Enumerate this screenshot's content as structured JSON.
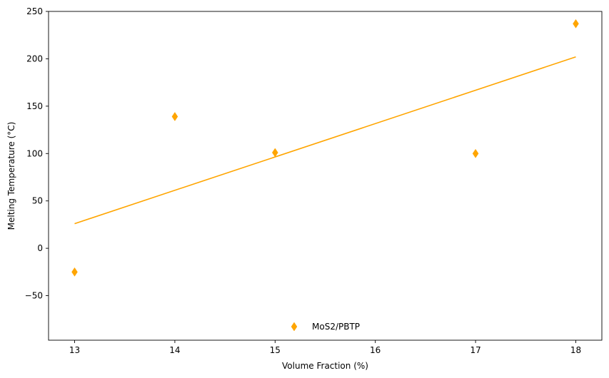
{
  "chart_data": {
    "type": "scatter",
    "title": "",
    "xlabel": "Volume Fraction (%)",
    "ylabel": "Melting Temperature (°C)",
    "xlim": [
      12.74,
      18.26
    ],
    "ylim": [
      -97,
      250
    ],
    "x_ticks": [
      13,
      14,
      15,
      16,
      17,
      18
    ],
    "x_tick_labels": [
      "13",
      "14",
      "15",
      "16",
      "17",
      "18"
    ],
    "y_ticks": [
      -50,
      0,
      50,
      100,
      150,
      200,
      250
    ],
    "y_tick_labels": [
      "−50",
      "0",
      "50",
      "100",
      "150",
      "200",
      "250"
    ],
    "grid": false,
    "legend_position": "lower center",
    "series": [
      {
        "name": "MoS2/PBTP",
        "marker": "thin-diamond",
        "color": "#FFA500",
        "points": [
          {
            "x": 13,
            "y": -25
          },
          {
            "x": 14,
            "y": 139
          },
          {
            "x": 15,
            "y": 101
          },
          {
            "x": 17,
            "y": 100
          },
          {
            "x": 18,
            "y": 237
          }
        ]
      }
    ],
    "trend_line": {
      "color": "#FFA500",
      "points": [
        {
          "x": 13,
          "y": 26
        },
        {
          "x": 18,
          "y": 202
        }
      ]
    }
  }
}
